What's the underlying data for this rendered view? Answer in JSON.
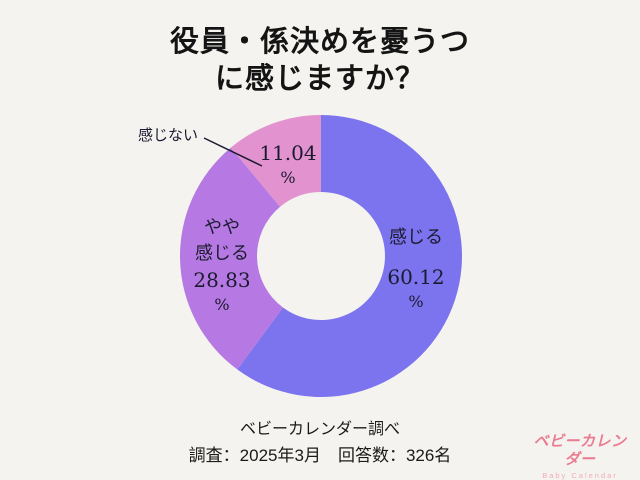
{
  "title": {
    "line1": "役員・係決めを憂うつ",
    "line2": "に感じますか？"
  },
  "chart_data": {
    "type": "pie",
    "subtype": "donut",
    "title": "役員・係決めを憂うつに感じますか？",
    "unit": "%",
    "start_angle_deg": 0,
    "direction": "clockwise",
    "legend_position": "labels-on-slices",
    "series": [
      {
        "label": "感じる",
        "value": 60.12,
        "display": "60.12",
        "color": "#7c73ee"
      },
      {
        "label": "やや感じる",
        "label_line1": "やや",
        "label_line2": "感じる",
        "value": 28.83,
        "display": "28.83",
        "color": "#b678e2"
      },
      {
        "label": "感じない",
        "value": 11.04,
        "display": "11.04",
        "color": "#e292cf"
      }
    ]
  },
  "footer": {
    "source": "ベビーカレンダー調べ",
    "survey_info": "調査：2025年3月　回答数：326名"
  },
  "logo": {
    "name": "ベビーカレンダー",
    "subtitle": "Baby Calendar",
    "color": "#ea7b91",
    "subtitle_color": "#f2abb8"
  },
  "colors": {
    "background": "#f4f3ef",
    "text": "#1b1b30",
    "leader_line": "#1b1b30"
  }
}
